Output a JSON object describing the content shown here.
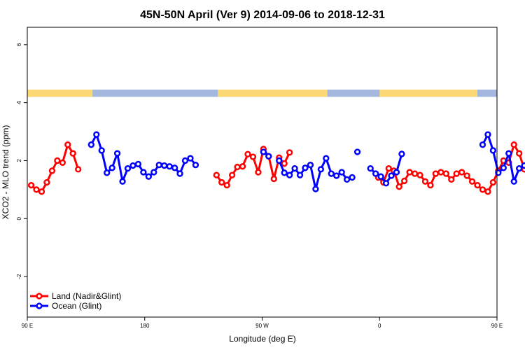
{
  "chart_data": {
    "type": "line",
    "title": "45N-50N April (Ver 9)   2014-09-06 to 2018-12-31",
    "xlabel": "Longitude (deg E)",
    "ylabel": "XCO2 - MLO trend (ppm)",
    "xlim": [
      90,
      450
    ],
    "ylim": [
      -3.4,
      6.6
    ],
    "x_ticks": [
      {
        "value": 90,
        "label": "90 E"
      },
      {
        "value": 180,
        "label": "180"
      },
      {
        "value": 270,
        "label": "90 W"
      },
      {
        "value": 360,
        "label": "0"
      },
      {
        "value": 450,
        "label": "90 E"
      },
      {
        "value": 540,
        "label": "180"
      }
    ],
    "y_ticks": [
      -2,
      0,
      2,
      4,
      6
    ],
    "grid": false,
    "legend_position": "bottom-left",
    "land_ocean_strip": {
      "y_range": [
        4.2,
        4.45
      ],
      "land_color": "#fcd875",
      "ocean_color": "#a3b8dc",
      "land_segments": [
        [
          90,
          140
        ],
        [
          236,
          320
        ],
        [
          360,
          435
        ]
      ]
    },
    "series": [
      {
        "name": "Land (Nadir&Glint)",
        "color": "#ff0000",
        "points": [
          [
            93,
            1.15
          ],
          [
            97,
            1.0
          ],
          [
            101,
            0.93
          ],
          [
            105,
            1.25
          ],
          [
            109,
            1.65
          ],
          [
            113,
            2.0
          ],
          [
            117,
            1.93
          ],
          [
            121,
            2.55
          ],
          [
            125,
            2.25
          ],
          [
            129,
            1.7
          ],
          null,
          [
            235,
            1.5
          ],
          [
            239,
            1.25
          ],
          [
            243,
            1.15
          ],
          [
            247,
            1.5
          ],
          [
            251,
            1.78
          ],
          [
            255,
            1.8
          ],
          [
            259,
            2.22
          ],
          [
            263,
            2.13
          ],
          [
            267,
            1.6
          ],
          [
            271,
            2.4
          ],
          [
            275,
            2.15
          ],
          [
            279,
            1.37
          ],
          [
            283,
            2.1
          ],
          [
            287,
            1.9
          ],
          [
            291,
            2.28
          ],
          null,
          [
            359,
            1.42
          ],
          [
            363,
            1.25
          ],
          [
            367,
            1.73
          ],
          [
            371,
            1.65
          ],
          [
            375,
            1.1
          ],
          [
            379,
            1.3
          ],
          [
            383,
            1.6
          ],
          [
            387,
            1.55
          ],
          [
            391,
            1.5
          ],
          [
            395,
            1.28
          ],
          [
            399,
            1.15
          ],
          [
            403,
            1.55
          ],
          [
            407,
            1.6
          ],
          [
            411,
            1.55
          ],
          [
            415,
            1.35
          ],
          [
            419,
            1.55
          ],
          [
            423,
            1.6
          ],
          [
            427,
            1.48
          ],
          [
            431,
            1.28
          ],
          [
            435,
            1.15
          ],
          [
            439,
            1.0
          ],
          [
            443,
            0.93
          ],
          [
            447,
            1.25
          ],
          [
            451,
            1.65
          ],
          [
            455,
            2.0
          ],
          [
            459,
            1.93
          ],
          [
            463,
            2.55
          ],
          [
            467,
            2.25
          ],
          [
            471,
            1.7
          ]
        ]
      },
      {
        "name": "Ocean (Glint)",
        "color": "#0000ff",
        "points": [
          [
            139,
            2.55
          ],
          [
            143,
            2.9
          ],
          [
            147,
            2.35
          ],
          [
            151,
            1.58
          ],
          [
            155,
            1.75
          ],
          [
            159,
            2.25
          ],
          [
            163,
            1.28
          ],
          [
            167,
            1.73
          ],
          [
            171,
            1.83
          ],
          [
            175,
            1.88
          ],
          [
            179,
            1.6
          ],
          [
            183,
            1.45
          ],
          [
            187,
            1.6
          ],
          [
            191,
            1.85
          ],
          [
            195,
            1.83
          ],
          [
            199,
            1.8
          ],
          [
            203,
            1.75
          ],
          [
            207,
            1.55
          ],
          [
            211,
            2.0
          ],
          [
            215,
            2.08
          ],
          [
            219,
            1.85
          ],
          null,
          [
            271,
            2.3
          ],
          [
            275,
            2.15
          ],
          null,
          [
            283,
            2.0
          ],
          [
            287,
            1.58
          ],
          [
            291,
            1.5
          ],
          [
            295,
            1.73
          ],
          [
            299,
            1.5
          ],
          [
            303,
            1.75
          ],
          [
            307,
            1.85
          ],
          [
            311,
            1.02
          ],
          [
            315,
            1.7
          ],
          [
            319,
            2.08
          ],
          [
            323,
            1.55
          ],
          [
            327,
            1.48
          ],
          [
            331,
            1.6
          ],
          [
            335,
            1.35
          ],
          [
            339,
            1.42
          ],
          null,
          [
            343,
            2.3
          ],
          null,
          [
            353,
            1.73
          ],
          [
            357,
            1.55
          ],
          [
            361,
            1.45
          ],
          [
            365,
            1.22
          ],
          [
            369,
            1.48
          ],
          [
            373,
            1.6
          ],
          [
            377,
            2.23
          ],
          null,
          [
            439,
            2.55
          ],
          [
            443,
            2.9
          ],
          [
            447,
            2.35
          ],
          [
            451,
            1.58
          ],
          [
            455,
            1.75
          ],
          [
            459,
            2.25
          ],
          [
            463,
            1.28
          ],
          [
            467,
            1.73
          ],
          [
            471,
            1.83
          ]
        ]
      }
    ]
  }
}
